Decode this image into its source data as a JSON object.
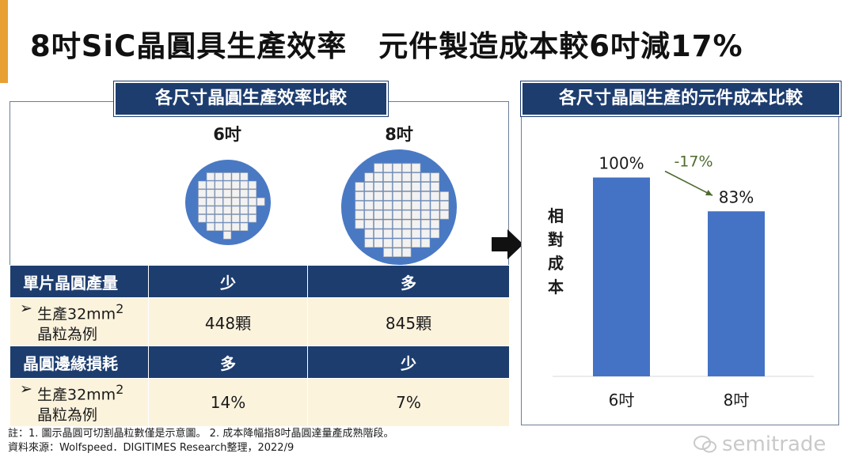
{
  "title": {
    "part1": "8吋SiC晶圓具生產效率",
    "part2": "元件製造成本較6吋減17%"
  },
  "left_panel": {
    "header": "各尺寸晶圓生產效率比較",
    "wafer_labels": [
      "6吋",
      "8吋"
    ],
    "table": {
      "rows": [
        {
          "type": "header",
          "label": "單片晶圓產量",
          "values": [
            "少",
            "多"
          ]
        },
        {
          "type": "data",
          "bullet": "➢",
          "label_line1": "生產32mm",
          "sup": "2",
          "label_line2": "晶粒為例",
          "values": [
            "448顆",
            "845顆"
          ]
        },
        {
          "type": "header",
          "label": "晶圓邊緣損耗",
          "values": [
            "多",
            "少"
          ]
        },
        {
          "type": "data",
          "bullet": "➢",
          "label_line1": "生產32mm",
          "sup": "2",
          "label_line2": "晶粒為例",
          "values": [
            "14%",
            "7%"
          ]
        }
      ]
    }
  },
  "right_panel": {
    "header": "各尺寸晶圓生產的元件成本比較"
  },
  "chart_data": {
    "type": "bar",
    "title": "各尺寸晶圓生產的元件成本比較",
    "categories": [
      "6吋",
      "8吋"
    ],
    "values": [
      100,
      83
    ],
    "data_labels": [
      "100%",
      "83%"
    ],
    "annotation": "-17%",
    "ylabel": "相對成本",
    "ylim": [
      0,
      120
    ],
    "grid": false,
    "bar_color": "#4472c4"
  },
  "notes": {
    "line1": "註：1. 圖示晶圓可切割晶粒數僅是示意圖。 2. 成本降幅指8吋晶圓達量產成熟階段。",
    "line2": "資料來源：Wolfspeed．DIGITIMES Research整理，2022/9"
  },
  "watermark": "semitrade",
  "colors": {
    "navy": "#1d3d6f",
    "cream": "#fcf3dd",
    "accent": "#e8a033",
    "bar": "#4472c4"
  }
}
